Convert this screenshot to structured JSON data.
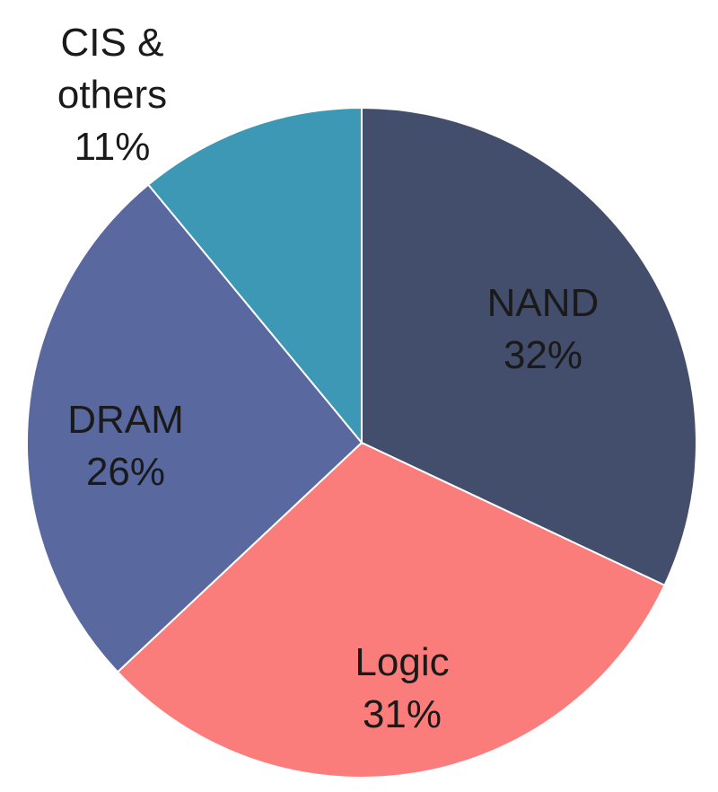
{
  "chart_data": {
    "type": "pie",
    "title": "",
    "start_angle_deg": 0,
    "direction": "clockwise",
    "slices": [
      {
        "label": "NAND",
        "value": 32,
        "value_text": "32%",
        "color": "#434d6c"
      },
      {
        "label": "Logic",
        "value": 31,
        "value_text": "31%",
        "color": "#fb7d7b"
      },
      {
        "label": "DRAM",
        "value": 26,
        "value_text": "26%",
        "color": "#59699f"
      },
      {
        "label": "CIS &",
        "label_line2": "others",
        "value": 11,
        "value_text": "11%",
        "color": "#3c98b5"
      }
    ]
  }
}
